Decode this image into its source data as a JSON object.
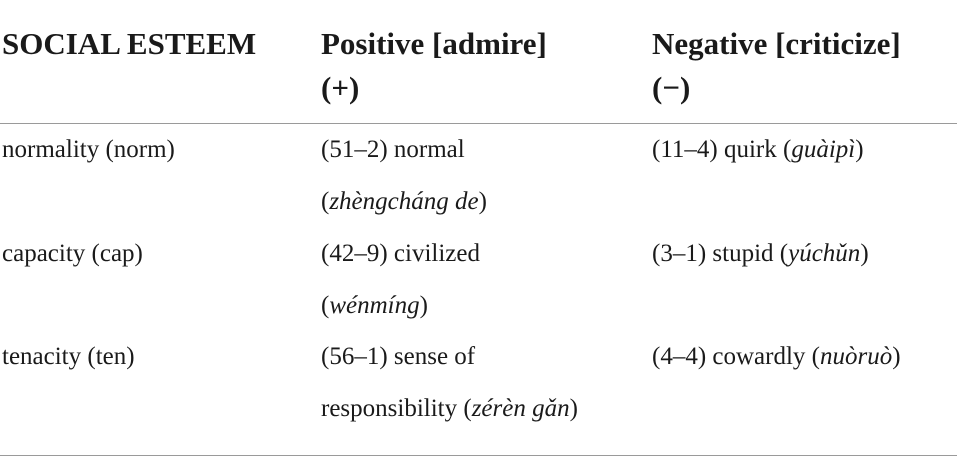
{
  "table": {
    "headers": [
      {
        "line1": "SOCIAL ESTEEM",
        "line2": ""
      },
      {
        "line1": "Positive [admire]",
        "line2": "(+)"
      },
      {
        "line1": "Negative [criticize]",
        "line2": "(−)"
      }
    ],
    "rows": [
      {
        "category": "normality (norm)",
        "positive": {
          "lead": "(51–2) normal",
          "pinyin": "zhèngcháng de",
          "before": "(",
          "after": ")"
        },
        "negative": {
          "lead": "(11–4) quirk (",
          "pinyin": "guàipì",
          "after": ")"
        }
      },
      {
        "category": "capacity (cap)",
        "positive": {
          "lead": "(42–9) civilized",
          "pinyin": "wénmíng",
          "before": "(",
          "after": ")"
        },
        "negative": {
          "lead": "(3–1) stupid (",
          "pinyin": "yúchǔn",
          "after": ")"
        }
      },
      {
        "category": "tenacity (ten)",
        "positive": {
          "lead": "(56–1) sense of",
          "pinyin": "zérèn gǎn",
          "before": "responsibility (",
          "after": ")"
        },
        "negative": {
          "lead": "(4–4) cowardly (",
          "pinyin": "nuòruò",
          "after": ")"
        }
      }
    ]
  }
}
